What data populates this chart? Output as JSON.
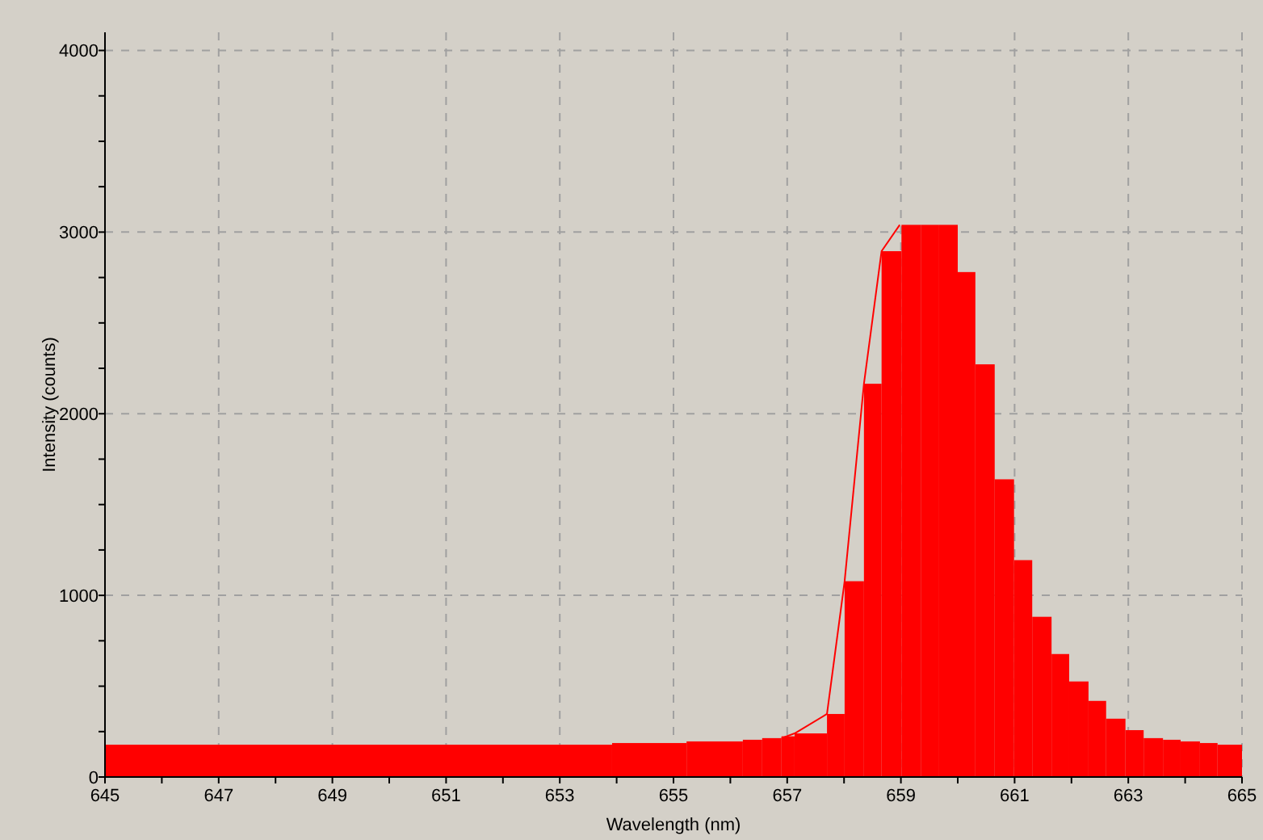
{
  "chart_data": {
    "type": "histogram",
    "xlabel": "Wavelength (nm)",
    "ylabel": "Intensity (counts)",
    "xlim": [
      645,
      665
    ],
    "ylim": [
      0,
      4100
    ],
    "xticks": [
      645,
      {
        "value": 646,
        "label": null
      },
      647,
      {
        "value": 648,
        "label": null
      },
      649,
      {
        "value": 650,
        "label": null
      },
      651,
      {
        "value": 652,
        "label": null
      },
      653,
      {
        "value": 654,
        "label": null
      },
      655,
      {
        "value": 656,
        "label": null
      },
      657,
      {
        "value": 658,
        "label": null
      },
      659,
      {
        "value": 660,
        "label": null
      },
      661,
      {
        "value": 662,
        "label": null
      },
      663,
      {
        "value": 664,
        "label": null
      },
      665
    ],
    "yticks": [
      0,
      {
        "value": 250,
        "label": null
      },
      {
        "value": 500,
        "label": null
      },
      {
        "value": 750,
        "label": null
      },
      1000,
      {
        "value": 1250,
        "label": null
      },
      {
        "value": 1500,
        "label": null
      },
      {
        "value": 1750,
        "label": null
      },
      2000,
      {
        "value": 2250,
        "label": null
      },
      {
        "value": 2500,
        "label": null
      },
      {
        "value": 2750,
        "label": null
      },
      3000,
      {
        "value": 3250,
        "label": null
      },
      {
        "value": 3500,
        "label": null
      },
      {
        "value": 3750,
        "label": null
      },
      4000
    ],
    "grid": true,
    "series": [
      {
        "color": "#ff0000",
        "bins": [
          645,
          653.92,
          655.23,
          656.22,
          656.56,
          656.9,
          657.13,
          657.7,
          658.01,
          658.35,
          658.66,
          659.01,
          659.35,
          659.66,
          660.0,
          660.31,
          660.65,
          660.99,
          661.31,
          661.65,
          661.96,
          662.3,
          662.61,
          662.95,
          663.27,
          663.61,
          663.92,
          664.26,
          664.57,
          665
        ],
        "values": [
          178,
          187,
          196,
          205,
          214,
          224,
          240,
          347,
          1078,
          2165,
          2895,
          3040,
          3040,
          3040,
          2780,
          2272,
          1639,
          1194,
          882,
          677,
          526,
          419,
          321,
          258,
          214,
          205,
          196,
          187,
          178
        ]
      },
      {
        "type": "line",
        "color": "#ff0000",
        "marker": "none",
        "x": [
          656.9,
          657.13,
          657.7,
          658.01,
          658.35,
          658.66,
          658.98
        ],
        "values": [
          214,
          240,
          347,
          1078,
          2165,
          2895,
          3040
        ]
      }
    ]
  }
}
